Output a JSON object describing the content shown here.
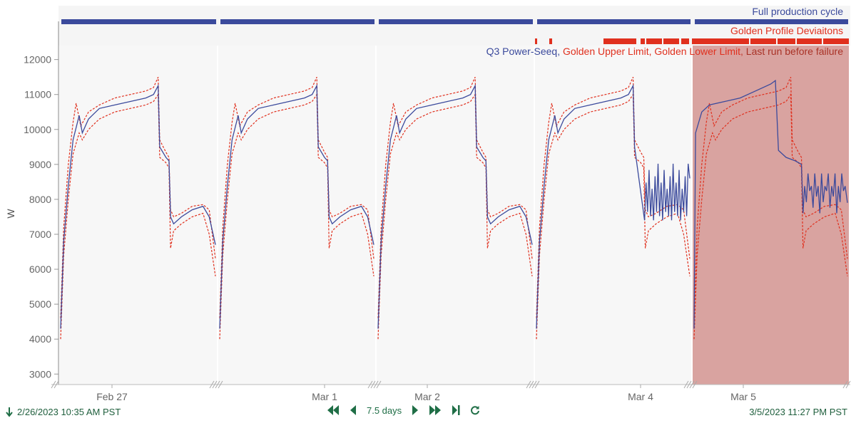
{
  "chart_data": {
    "type": "line",
    "ylabel": "W",
    "ylim": [
      2700,
      12400
    ],
    "y_ticks": [
      "3000",
      "4000",
      "5000",
      "6000",
      "7000",
      "8000",
      "9000",
      "10000",
      "11000",
      "12000"
    ],
    "x_ticks": [
      "Feb 27",
      "Mar 1",
      "Mar 2",
      "Mar 4",
      "Mar 5"
    ],
    "legend": {
      "location": "top-right",
      "entries": [
        {
          "name": "Q3 Power-Seeq",
          "color": "#3b4a9c"
        },
        {
          "name": "Golden Upper Limit",
          "color": "#e0301e"
        },
        {
          "name": "Golden Lower Limit",
          "color": "#e0301e"
        },
        {
          "name": "Last run before failure",
          "color": "#c0392b"
        }
      ]
    },
    "capsule_lanes": [
      {
        "name": "Full production cycle",
        "color": "#3b4a9c"
      },
      {
        "name": "Golden Profile Deviaitons",
        "color": "#e0301e"
      }
    ],
    "cycles": [
      {
        "index": 1,
        "mode": "normal"
      },
      {
        "index": 2,
        "mode": "normal"
      },
      {
        "index": 3,
        "mode": "normal"
      },
      {
        "index": 4,
        "mode": "noisy"
      },
      {
        "index": 5,
        "mode": "failure"
      }
    ],
    "profile": [
      [
        0.0,
        4300
      ],
      [
        0.02,
        6800
      ],
      [
        0.05,
        8400
      ],
      [
        0.08,
        9700
      ],
      [
        0.12,
        10400
      ],
      [
        0.14,
        9900
      ],
      [
        0.18,
        10300
      ],
      [
        0.25,
        10600
      ],
      [
        0.35,
        10700
      ],
      [
        0.45,
        10800
      ],
      [
        0.55,
        10900
      ],
      [
        0.6,
        11000
      ],
      [
        0.63,
        11250
      ],
      [
        0.64,
        9500
      ],
      [
        0.68,
        9200
      ],
      [
        0.7,
        9100
      ],
      [
        0.71,
        7500
      ],
      [
        0.73,
        7300
      ],
      [
        0.78,
        7500
      ],
      [
        0.85,
        7700
      ],
      [
        0.92,
        7800
      ],
      [
        0.96,
        7500
      ],
      [
        1.0,
        6700
      ]
    ],
    "upper_profile": [
      [
        0.0,
        4600
      ],
      [
        0.02,
        7200
      ],
      [
        0.05,
        9000
      ],
      [
        0.08,
        10200
      ],
      [
        0.1,
        10750
      ],
      [
        0.13,
        10100
      ],
      [
        0.18,
        10500
      ],
      [
        0.25,
        10700
      ],
      [
        0.35,
        10900
      ],
      [
        0.45,
        11000
      ],
      [
        0.55,
        11100
      ],
      [
        0.6,
        11200
      ],
      [
        0.63,
        11500
      ],
      [
        0.64,
        9700
      ],
      [
        0.68,
        9350
      ],
      [
        0.7,
        9200
      ],
      [
        0.71,
        7700
      ],
      [
        0.73,
        7500
      ],
      [
        0.78,
        7600
      ],
      [
        0.85,
        7800
      ],
      [
        0.92,
        7850
      ],
      [
        0.96,
        7700
      ],
      [
        1.0,
        6300
      ]
    ],
    "lower_profile": [
      [
        0.0,
        4000
      ],
      [
        0.02,
        6400
      ],
      [
        0.05,
        8000
      ],
      [
        0.08,
        9300
      ],
      [
        0.12,
        9900
      ],
      [
        0.14,
        9700
      ],
      [
        0.18,
        10000
      ],
      [
        0.25,
        10300
      ],
      [
        0.35,
        10500
      ],
      [
        0.45,
        10600
      ],
      [
        0.55,
        10700
      ],
      [
        0.6,
        10800
      ],
      [
        0.63,
        11000
      ],
      [
        0.64,
        9200
      ],
      [
        0.68,
        9050
      ],
      [
        0.7,
        8900
      ],
      [
        0.71,
        6600
      ],
      [
        0.73,
        7100
      ],
      [
        0.78,
        7300
      ],
      [
        0.85,
        7500
      ],
      [
        0.92,
        7600
      ],
      [
        0.96,
        7000
      ],
      [
        1.0,
        5800
      ]
    ]
  },
  "footer": {
    "start_time": "2/26/2023 10:35 AM  PST",
    "end_time": "3/5/2023 11:27 PM  PST",
    "duration": "7.5 days"
  }
}
